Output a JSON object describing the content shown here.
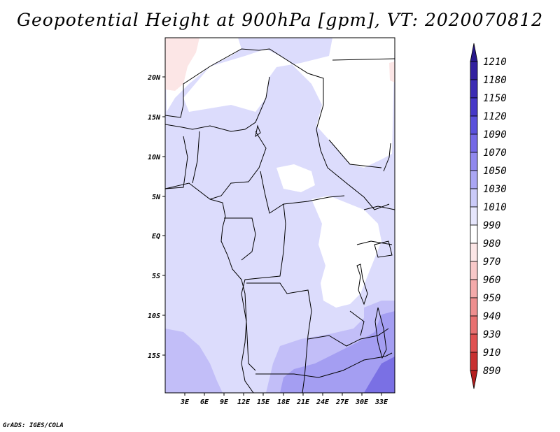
{
  "title": "Geopotential Height at 900hPa [gpm], VT: 2020070812",
  "credit": "GrADS: IGES/COLA",
  "lat_labels": [
    "20N",
    "15N",
    "10N",
    "5N",
    "EQ",
    "5S",
    "10S",
    "15S"
  ],
  "lon_labels": [
    "3E",
    "6E",
    "9E",
    "12E",
    "15E",
    "18E",
    "21E",
    "24E",
    "27E",
    "30E",
    "33E"
  ],
  "colorbar": {
    "levels": [
      "1210",
      "1180",
      "1150",
      "1120",
      "1090",
      "1070",
      "1050",
      "1030",
      "1010",
      "990",
      "980",
      "970",
      "960",
      "950",
      "940",
      "930",
      "910",
      "890"
    ],
    "colors": [
      "#28188c",
      "#3220a0",
      "#3c2cb4",
      "#4638c8",
      "#5a50dc",
      "#7468e6",
      "#9088ee",
      "#aaa6f4",
      "#cacaf8",
      "#e6e6fc",
      "#ffffff",
      "#fce6e6",
      "#f8c8c8",
      "#f4aaaa",
      "#ee8e8e",
      "#e87070",
      "#e05050",
      "#c83030",
      "#b41e1e"
    ]
  },
  "fields": {
    "light_band": "#dcdcfc",
    "mid_band": "#c2bef8",
    "strong_band": "#a49ef2",
    "deep_band": "#7a70e4",
    "white_band": "#ffffff",
    "pink_band": "#fce6e6"
  }
}
